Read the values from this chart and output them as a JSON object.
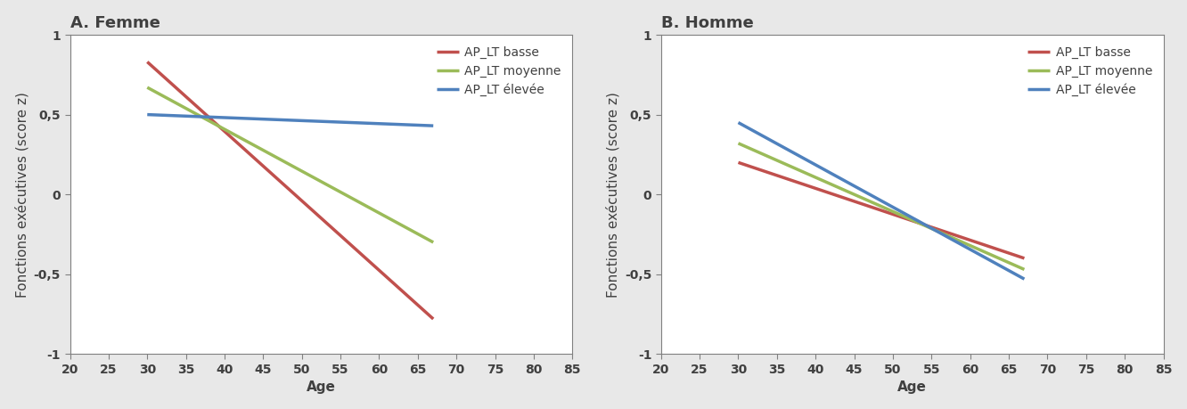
{
  "panel_A": {
    "title": "A. Femme",
    "lines": [
      {
        "label": "AP_LT basse",
        "color": "#C0504D",
        "x": [
          30,
          67
        ],
        "y": [
          0.83,
          -0.78
        ]
      },
      {
        "label": "AP_LT moyenne",
        "color": "#9BBB59",
        "x": [
          30,
          67
        ],
        "y": [
          0.67,
          -0.3
        ]
      },
      {
        "label": "AP_LT élevée",
        "color": "#4F81BD",
        "x": [
          30,
          67
        ],
        "y": [
          0.5,
          0.43
        ]
      }
    ]
  },
  "panel_B": {
    "title": "B. Homme",
    "lines": [
      {
        "label": "AP_LT basse",
        "color": "#C0504D",
        "x": [
          30,
          67
        ],
        "y": [
          0.2,
          -0.4
        ]
      },
      {
        "label": "AP_LT moyenne",
        "color": "#9BBB59",
        "x": [
          30,
          67
        ],
        "y": [
          0.32,
          -0.47
        ]
      },
      {
        "label": "AP_LT élevée",
        "color": "#4F81BD",
        "x": [
          30,
          67
        ],
        "y": [
          0.45,
          -0.53
        ]
      }
    ]
  },
  "xlabel": "Age",
  "ylabel": "Fonctions exécutives (score z)",
  "xlim": [
    20,
    85
  ],
  "ylim": [
    -1,
    1
  ],
  "xticks": [
    20,
    25,
    30,
    35,
    40,
    45,
    50,
    55,
    60,
    65,
    70,
    75,
    80,
    85
  ],
  "yticks": [
    -1,
    -0.5,
    0,
    0.5,
    1
  ],
  "ytick_labels": [
    "-1",
    "-0,5",
    "0",
    "0,5",
    "1"
  ],
  "line_width": 2.5,
  "background_color": "#E8E8E8",
  "plot_background_color": "#FFFFFF",
  "title_fontsize": 13,
  "label_fontsize": 11,
  "tick_fontsize": 10,
  "legend_fontsize": 10,
  "spine_color": "#808080",
  "text_color": "#404040"
}
